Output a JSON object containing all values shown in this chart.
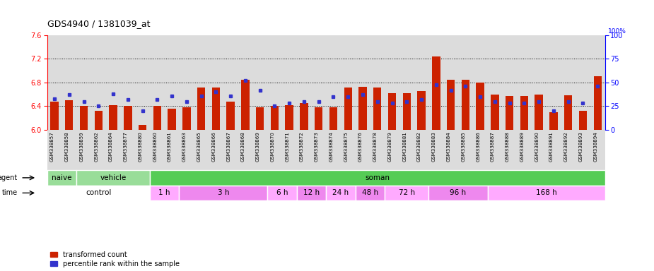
{
  "title": "GDS4940 / 1381039_at",
  "samples": [
    "GSM338857",
    "GSM338858",
    "GSM338859",
    "GSM338862",
    "GSM338864",
    "GSM338877",
    "GSM338880",
    "GSM338860",
    "GSM338861",
    "GSM338863",
    "GSM338865",
    "GSM338866",
    "GSM338867",
    "GSM338868",
    "GSM338869",
    "GSM338870",
    "GSM338871",
    "GSM338872",
    "GSM338873",
    "GSM338874",
    "GSM338875",
    "GSM338876",
    "GSM338878",
    "GSM338879",
    "GSM338881",
    "GSM338882",
    "GSM338883",
    "GSM338884",
    "GSM338885",
    "GSM338886",
    "GSM338887",
    "GSM338888",
    "GSM338889",
    "GSM338890",
    "GSM338891",
    "GSM338892",
    "GSM338893",
    "GSM338894"
  ],
  "red_values": [
    6.48,
    6.5,
    6.4,
    6.32,
    6.42,
    6.4,
    6.08,
    6.4,
    6.35,
    6.38,
    6.72,
    6.72,
    6.48,
    6.84,
    6.38,
    6.4,
    6.42,
    6.45,
    6.38,
    6.38,
    6.72,
    6.73,
    6.72,
    6.62,
    6.62,
    6.65,
    7.24,
    6.85,
    6.85,
    6.8,
    6.6,
    6.57,
    6.57,
    6.6,
    6.3,
    6.58,
    6.32,
    6.9
  ],
  "blue_values": [
    33,
    37,
    30,
    25,
    38,
    32,
    20,
    32,
    36,
    30,
    36,
    40,
    36,
    52,
    42,
    25,
    28,
    30,
    30,
    35,
    35,
    37,
    30,
    28,
    30,
    32,
    48,
    42,
    46,
    35,
    30,
    28,
    28,
    30,
    20,
    30,
    28,
    46
  ],
  "ylim_left": [
    6.0,
    7.6
  ],
  "ylim_right": [
    0,
    100
  ],
  "yticks_left": [
    6.0,
    6.4,
    6.8,
    7.2,
    7.6
  ],
  "yticks_right": [
    0,
    25,
    50,
    75,
    100
  ],
  "bar_color_red": "#CC2200",
  "bar_color_blue": "#3333CC",
  "bg_color": "#DCDCDC",
  "bar_width": 0.55,
  "agent_groups": [
    {
      "label": "naive",
      "start": 0,
      "end": 2,
      "color": "#99DD99"
    },
    {
      "label": "vehicle",
      "start": 2,
      "end": 7,
      "color": "#99DD99"
    },
    {
      "label": "soman",
      "start": 7,
      "end": 38,
      "color": "#55CC55"
    }
  ],
  "time_groups": [
    {
      "label": "control",
      "start": 0,
      "end": 7,
      "color": "#FFFFFF"
    },
    {
      "label": "1 h",
      "start": 7,
      "end": 9,
      "color": "#FFAAFF"
    },
    {
      "label": "3 h",
      "start": 9,
      "end": 15,
      "color": "#EE88EE"
    },
    {
      "label": "6 h",
      "start": 15,
      "end": 17,
      "color": "#FFAAFF"
    },
    {
      "label": "12 h",
      "start": 17,
      "end": 19,
      "color": "#EE88EE"
    },
    {
      "label": "24 h",
      "start": 19,
      "end": 21,
      "color": "#FFAAFF"
    },
    {
      "label": "48 h",
      "start": 21,
      "end": 23,
      "color": "#EE88EE"
    },
    {
      "label": "72 h",
      "start": 23,
      "end": 26,
      "color": "#FFAAFF"
    },
    {
      "label": "96 h",
      "start": 26,
      "end": 30,
      "color": "#EE88EE"
    },
    {
      "label": "168 h",
      "start": 30,
      "end": 38,
      "color": "#FFAAFF"
    }
  ]
}
